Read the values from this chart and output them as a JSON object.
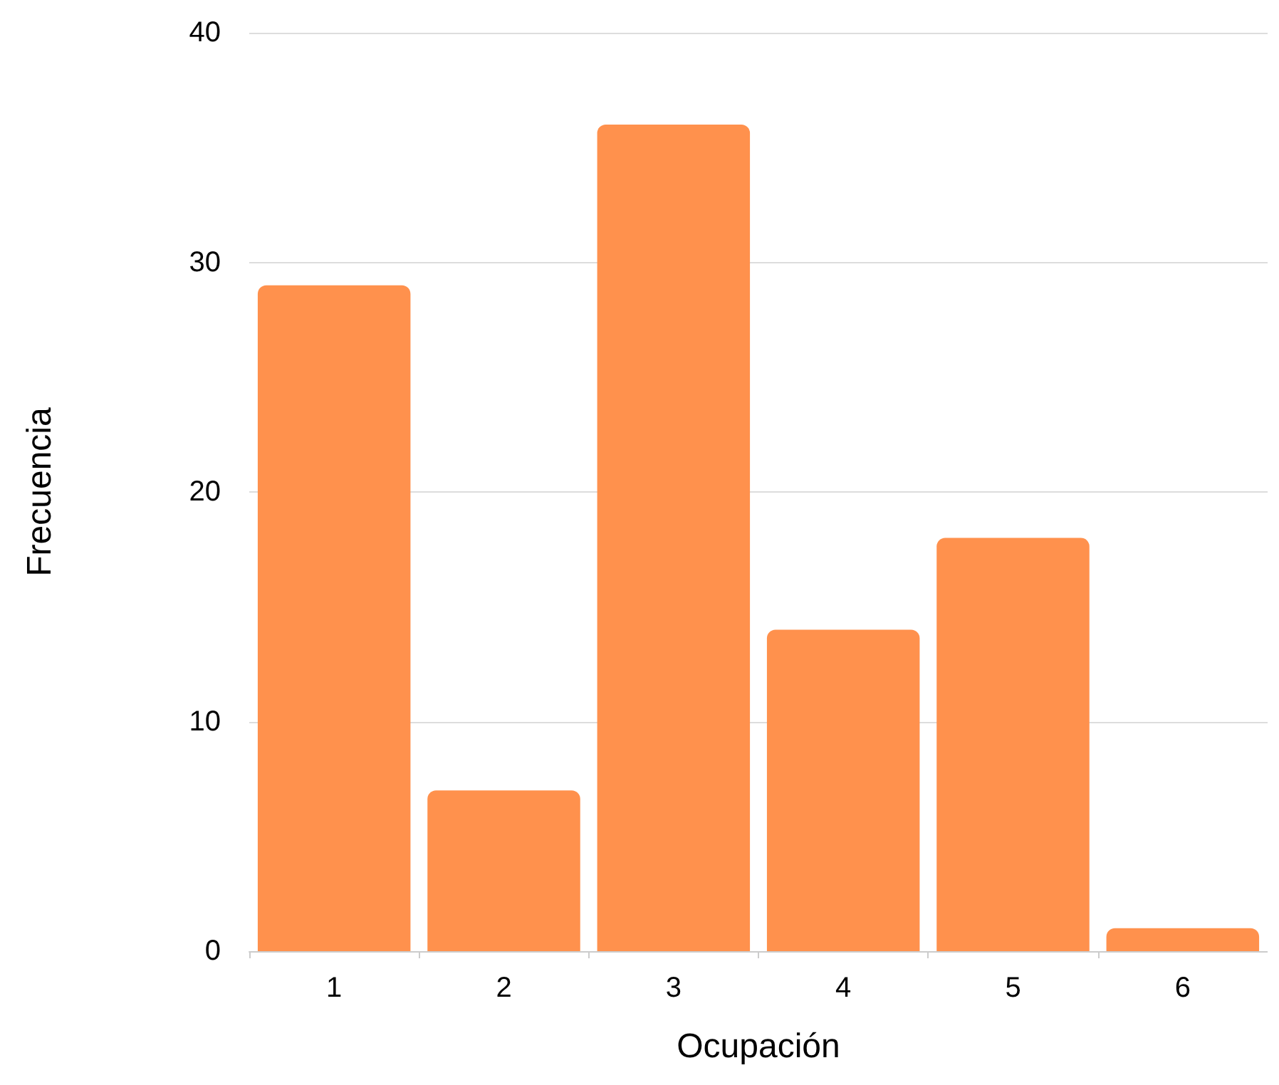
{
  "chart_data": {
    "type": "bar",
    "xlabel": "Ocupación",
    "ylabel": "Frecuencia",
    "categories": [
      "1",
      "2",
      "3",
      "4",
      "5",
      "6"
    ],
    "values": [
      29,
      7,
      36,
      14,
      18,
      1
    ],
    "color": "#ff914d",
    "ylim": [
      0,
      40
    ],
    "yticks": [
      0,
      10,
      20,
      30,
      40
    ],
    "grid": "y"
  }
}
